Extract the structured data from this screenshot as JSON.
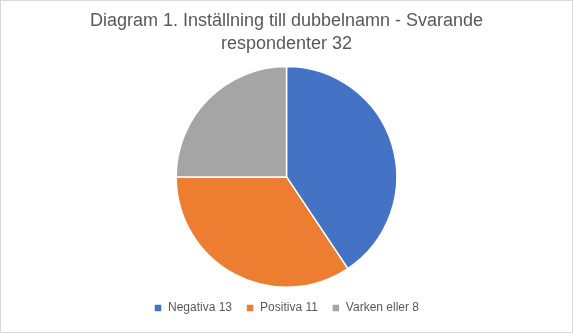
{
  "chart_data": {
    "type": "pie",
    "title": "Diagram 1. Inställning till dubbelnamn - Svarande respondenter 32",
    "categories": [
      "Negativa 13",
      "Positiva 11",
      "Varken eller 8"
    ],
    "values": [
      13,
      11,
      8
    ],
    "colors": [
      "#4472c4",
      "#ed7d31",
      "#a5a5a5"
    ],
    "legend": "bottom"
  }
}
